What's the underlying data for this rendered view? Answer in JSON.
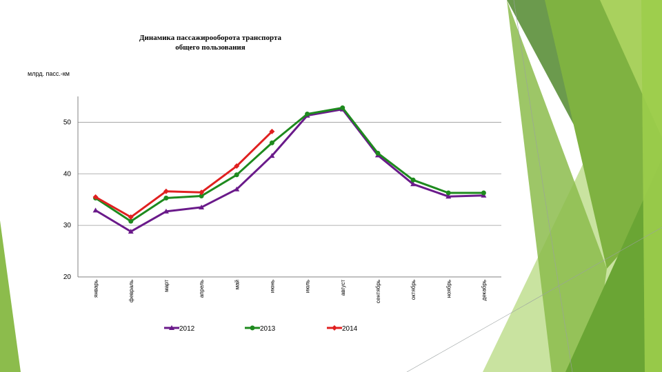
{
  "chart_data": {
    "type": "line",
    "title_lines": [
      "Динамика пассажирооборота транспорта",
      "общего пользования"
    ],
    "ylabel": "млрд. пасс.-км",
    "ylim": [
      20,
      55
    ],
    "yticks": [
      20,
      30,
      40,
      50
    ],
    "grid": true,
    "legend_position": "bottom",
    "categories": [
      "январь",
      "февраль",
      "март",
      "апрель",
      "май",
      "июнь",
      "июль",
      "август",
      "сентябрь",
      "октябрь",
      "ноябрь",
      "декабрь"
    ],
    "series": [
      {
        "name": "2012",
        "color": "#6a1a8a",
        "marker": "triangle",
        "values": [
          32.9,
          28.8,
          32.7,
          33.5,
          37.0,
          43.5,
          51.3,
          52.5,
          43.6,
          38.0,
          35.6,
          35.8
        ]
      },
      {
        "name": "2013",
        "color": "#1e8a1e",
        "marker": "circle",
        "values": [
          35.3,
          30.8,
          35.3,
          35.7,
          39.8,
          46.0,
          51.6,
          52.8,
          44.0,
          38.8,
          36.3,
          36.3
        ]
      },
      {
        "name": "2014",
        "color": "#e02020",
        "marker": "diamond",
        "values": [
          35.5,
          31.6,
          36.6,
          36.4,
          41.5,
          48.2,
          null,
          null,
          null,
          null,
          null,
          null
        ]
      }
    ]
  }
}
